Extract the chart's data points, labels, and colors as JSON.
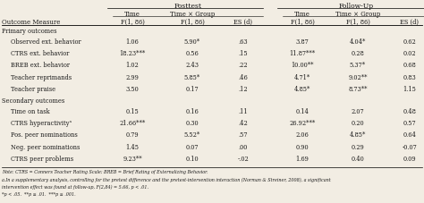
{
  "title_posttest": "Posttest",
  "title_followup": "Follow-Up",
  "col_subheaders": [
    "F(1, 86)",
    "F(1, 86)",
    "ES (d)",
    "F(1, 86)",
    "F(1, 86)",
    "ES (d)"
  ],
  "outcome_label": "Outcome Measure",
  "section_primary": "Primary outcomes",
  "section_secondary": "Secondary outcomes",
  "rows": [
    [
      "Observed ext. behavior",
      "1.06",
      "5.90*",
      ".63",
      "3.87",
      "4.04*",
      "0.62"
    ],
    [
      "CTRS ext. behavior",
      "18.23***",
      "0.56",
      ".15",
      "11.87***",
      "0.28",
      "0.02"
    ],
    [
      "BREB ext. behavior",
      "1.02",
      "2.43",
      ".22",
      "10.00**",
      "5.37*",
      "0.68"
    ],
    [
      "Teacher reprimands",
      "2.99",
      "5.85*",
      ".46",
      "4.71*",
      "9.02**",
      "0.83"
    ],
    [
      "Teacher praise",
      "3.50",
      "0.17",
      ".12",
      "4.85*",
      "8.73**",
      "1.15"
    ],
    [
      "Time on task",
      "0.15",
      "0.16",
      ".11",
      "0.14",
      "2.07",
      "0.48"
    ],
    [
      "CTRS hyperactivityᵃ",
      "21.66***",
      "0.30",
      ".42",
      "26.92***",
      "0.20",
      "0.57"
    ],
    [
      "Pos. peer nominations",
      "0.79",
      "5.52*",
      ".57",
      "2.06",
      "4.85*",
      "0.64"
    ],
    [
      "Neg. peer nominations",
      "1.45",
      "0.07",
      ".00",
      "0.90",
      "0.29",
      "-0.07"
    ],
    [
      "CTRS peer problems",
      "9.23**",
      "0.10",
      "-.02",
      "1.69",
      "0.40",
      "0.09"
    ]
  ],
  "section_breaks": [
    0,
    5
  ],
  "note1": "Note: CTRS = Conners Teacher Rating Scale; BREB = Brief Rating of Externalizing Behavior.",
  "note2": "a.In a supplementary analysis, controlling for the pretest difference and the pretest-intervention interaction (Norman & Streiner, 2008), a significant",
  "note3": "intervention effect was found at follow-up, F(2,84) = 5.66, p < .01.",
  "note4": "*p < .05.  **p ≤ .01.  ***p ≤ .001.",
  "bg_color": "#f2ede3",
  "text_color": "#1a1a1a"
}
